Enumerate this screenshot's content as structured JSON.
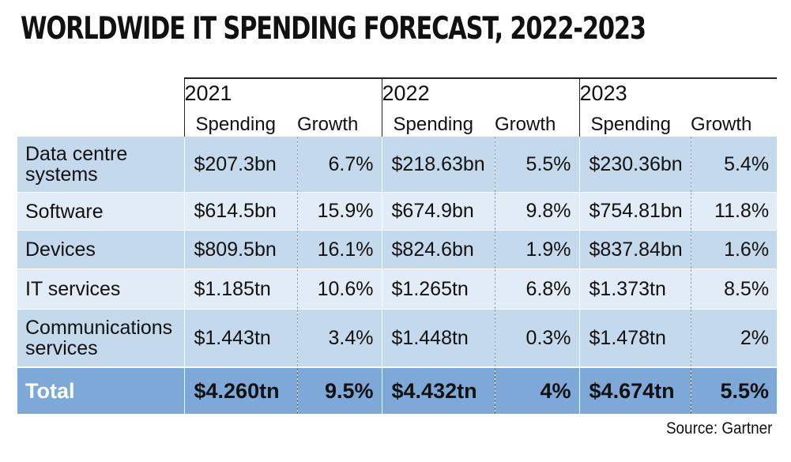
{
  "chart_data": {
    "type": "table",
    "title": "WORLDWIDE IT SPENDING FORECAST, 2022-2023",
    "years": [
      "2021",
      "2022",
      "2023"
    ],
    "subheaders": [
      "Spending",
      "Growth"
    ],
    "rows": [
      {
        "category": "Data centre systems",
        "cells": [
          "$207.3bn",
          "6.7%",
          "$218.63bn",
          "5.5%",
          "$230.36bn",
          "5.4%"
        ]
      },
      {
        "category": "Software",
        "cells": [
          "$614.5bn",
          "15.9%",
          "$674.9bn",
          "9.8%",
          "$754.81bn",
          "11.8%"
        ]
      },
      {
        "category": "Devices",
        "cells": [
          "$809.5bn",
          "16.1%",
          "$824.6bn",
          "1.9%",
          "$837.84bn",
          "1.6%"
        ]
      },
      {
        "category": "IT services",
        "cells": [
          "$1.185tn",
          "10.6%",
          "$1.265tn",
          "6.8%",
          "$1.373tn",
          "8.5%"
        ]
      },
      {
        "category": "Communications services",
        "cells": [
          "$1.443tn",
          "3.4%",
          "$1.448tn",
          "0.3%",
          "$1.478tn",
          "2%"
        ]
      }
    ],
    "total": {
      "category": "Total",
      "cells": [
        "$4.260tn",
        "9.5%",
        "$4.432tn",
        "4%",
        "$4.674tn",
        "5.5%"
      ]
    },
    "source": "Source: Gartner"
  },
  "colors": {
    "row_dark": "#c5d9ec",
    "row_light": "#e2ecf7",
    "total_bg": "#7ea8d7",
    "total_label": "#ffffff"
  }
}
